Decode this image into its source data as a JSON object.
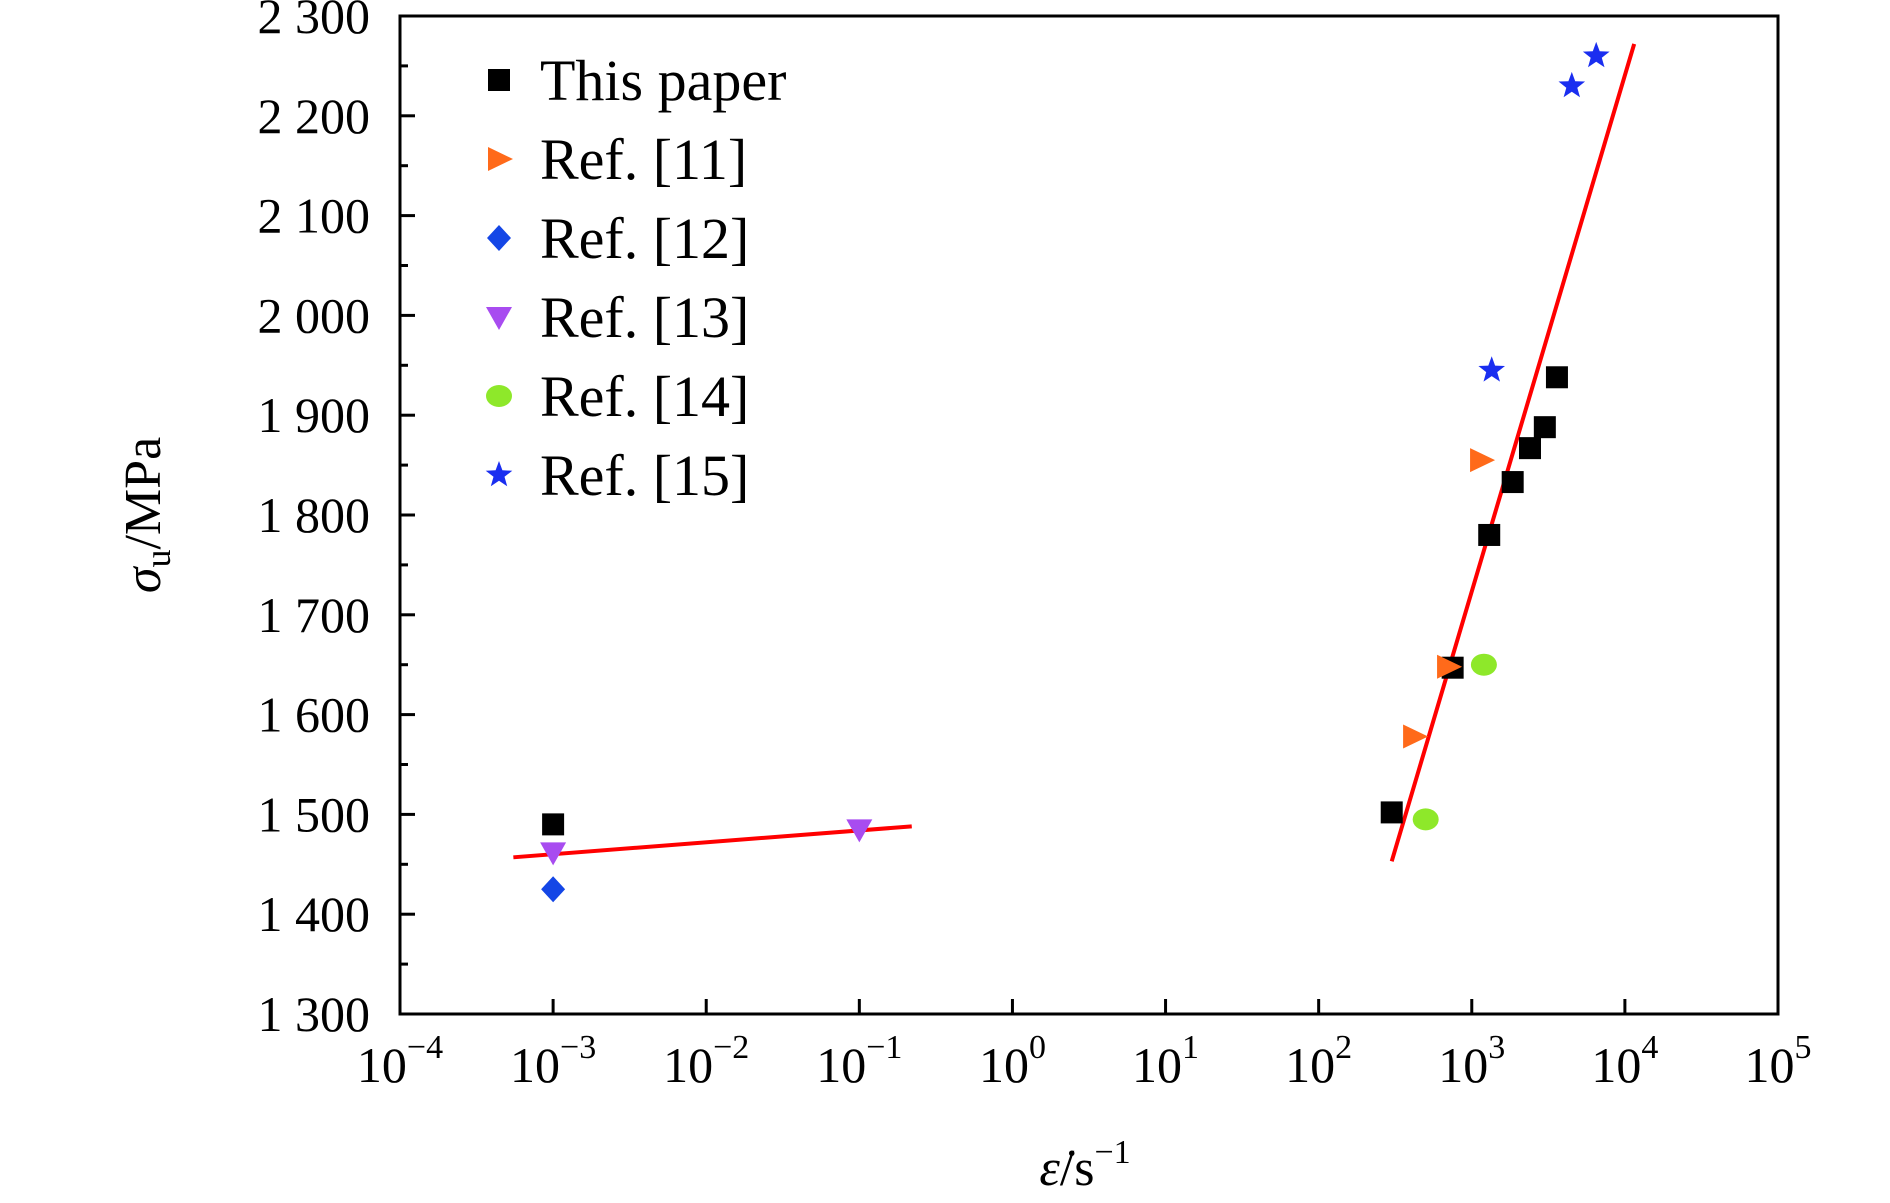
{
  "chart_data": {
    "type": "scatter",
    "title": "",
    "xlabel": {
      "symbol": "ε̇",
      "unit": "/s",
      "exp": "−1"
    },
    "ylabel": {
      "symbol": "σ",
      "sub": "u",
      "unit": "/MPa"
    },
    "xscale": "log",
    "xlim_exp": [
      -4,
      5
    ],
    "ylim": [
      1300,
      2300
    ],
    "x_ticks": [
      {
        "base": "10",
        "exp": "−4"
      },
      {
        "base": "10",
        "exp": "−3"
      },
      {
        "base": "10",
        "exp": "−2"
      },
      {
        "base": "10",
        "exp": "−1"
      },
      {
        "base": "10",
        "exp": "0"
      },
      {
        "base": "10",
        "exp": "1"
      },
      {
        "base": "10",
        "exp": "2"
      },
      {
        "base": "10",
        "exp": "3"
      },
      {
        "base": "10",
        "exp": "4"
      },
      {
        "base": "10",
        "exp": "5"
      }
    ],
    "y_ticks": [
      {
        "value": 1300,
        "label": "1 300"
      },
      {
        "value": 1400,
        "label": "1 400"
      },
      {
        "value": 1500,
        "label": "1 500"
      },
      {
        "value": 1600,
        "label": "1 600"
      },
      {
        "value": 1700,
        "label": "1 700"
      },
      {
        "value": 1800,
        "label": "1 800"
      },
      {
        "value": 1900,
        "label": "1 900"
      },
      {
        "value": 2000,
        "label": "2 000"
      },
      {
        "value": 2100,
        "label": "2 100"
      },
      {
        "value": 2200,
        "label": "2 200"
      },
      {
        "value": 2300,
        "label": "2 300"
      }
    ],
    "legend_position": "top-left",
    "series": [
      {
        "name": "This paper",
        "marker": "square",
        "color": "#000000",
        "points": [
          [
            0.001,
            1490
          ],
          [
            300,
            1502
          ],
          [
            750,
            1647
          ],
          [
            1300,
            1780
          ],
          [
            1850,
            1833
          ],
          [
            2400,
            1867
          ],
          [
            3000,
            1888
          ],
          [
            3600,
            1938
          ]
        ]
      },
      {
        "name": "Ref. [11]",
        "marker": "triangle-right",
        "color": "#ff6a1a",
        "points": [
          [
            420,
            1578
          ],
          [
            700,
            1648
          ],
          [
            1150,
            1855
          ]
        ]
      },
      {
        "name": "Ref. [12]",
        "marker": "diamond",
        "color": "#1446e6",
        "points": [
          [
            0.001,
            1425
          ]
        ]
      },
      {
        "name": "Ref. [13]",
        "marker": "triangle-down",
        "color": "#a84cf0",
        "points": [
          [
            0.001,
            1462
          ],
          [
            0.1,
            1485
          ]
        ]
      },
      {
        "name": "Ref. [14]",
        "marker": "circle",
        "color": "#8ee82a",
        "points": [
          [
            500,
            1495
          ],
          [
            1200,
            1650
          ]
        ]
      },
      {
        "name": "Ref. [15]",
        "marker": "star",
        "color": "#1a2ef0",
        "points": [
          [
            1350,
            1945
          ],
          [
            4500,
            2230
          ],
          [
            6500,
            2260
          ]
        ]
      }
    ],
    "fit_lines": [
      {
        "color": "#ff0000",
        "points": [
          [
            0.00055,
            1457
          ],
          [
            0.22,
            1488
          ]
        ]
      },
      {
        "color": "#ff0000",
        "points": [
          [
            300,
            1453
          ],
          [
            11500,
            2272
          ]
        ]
      }
    ]
  }
}
